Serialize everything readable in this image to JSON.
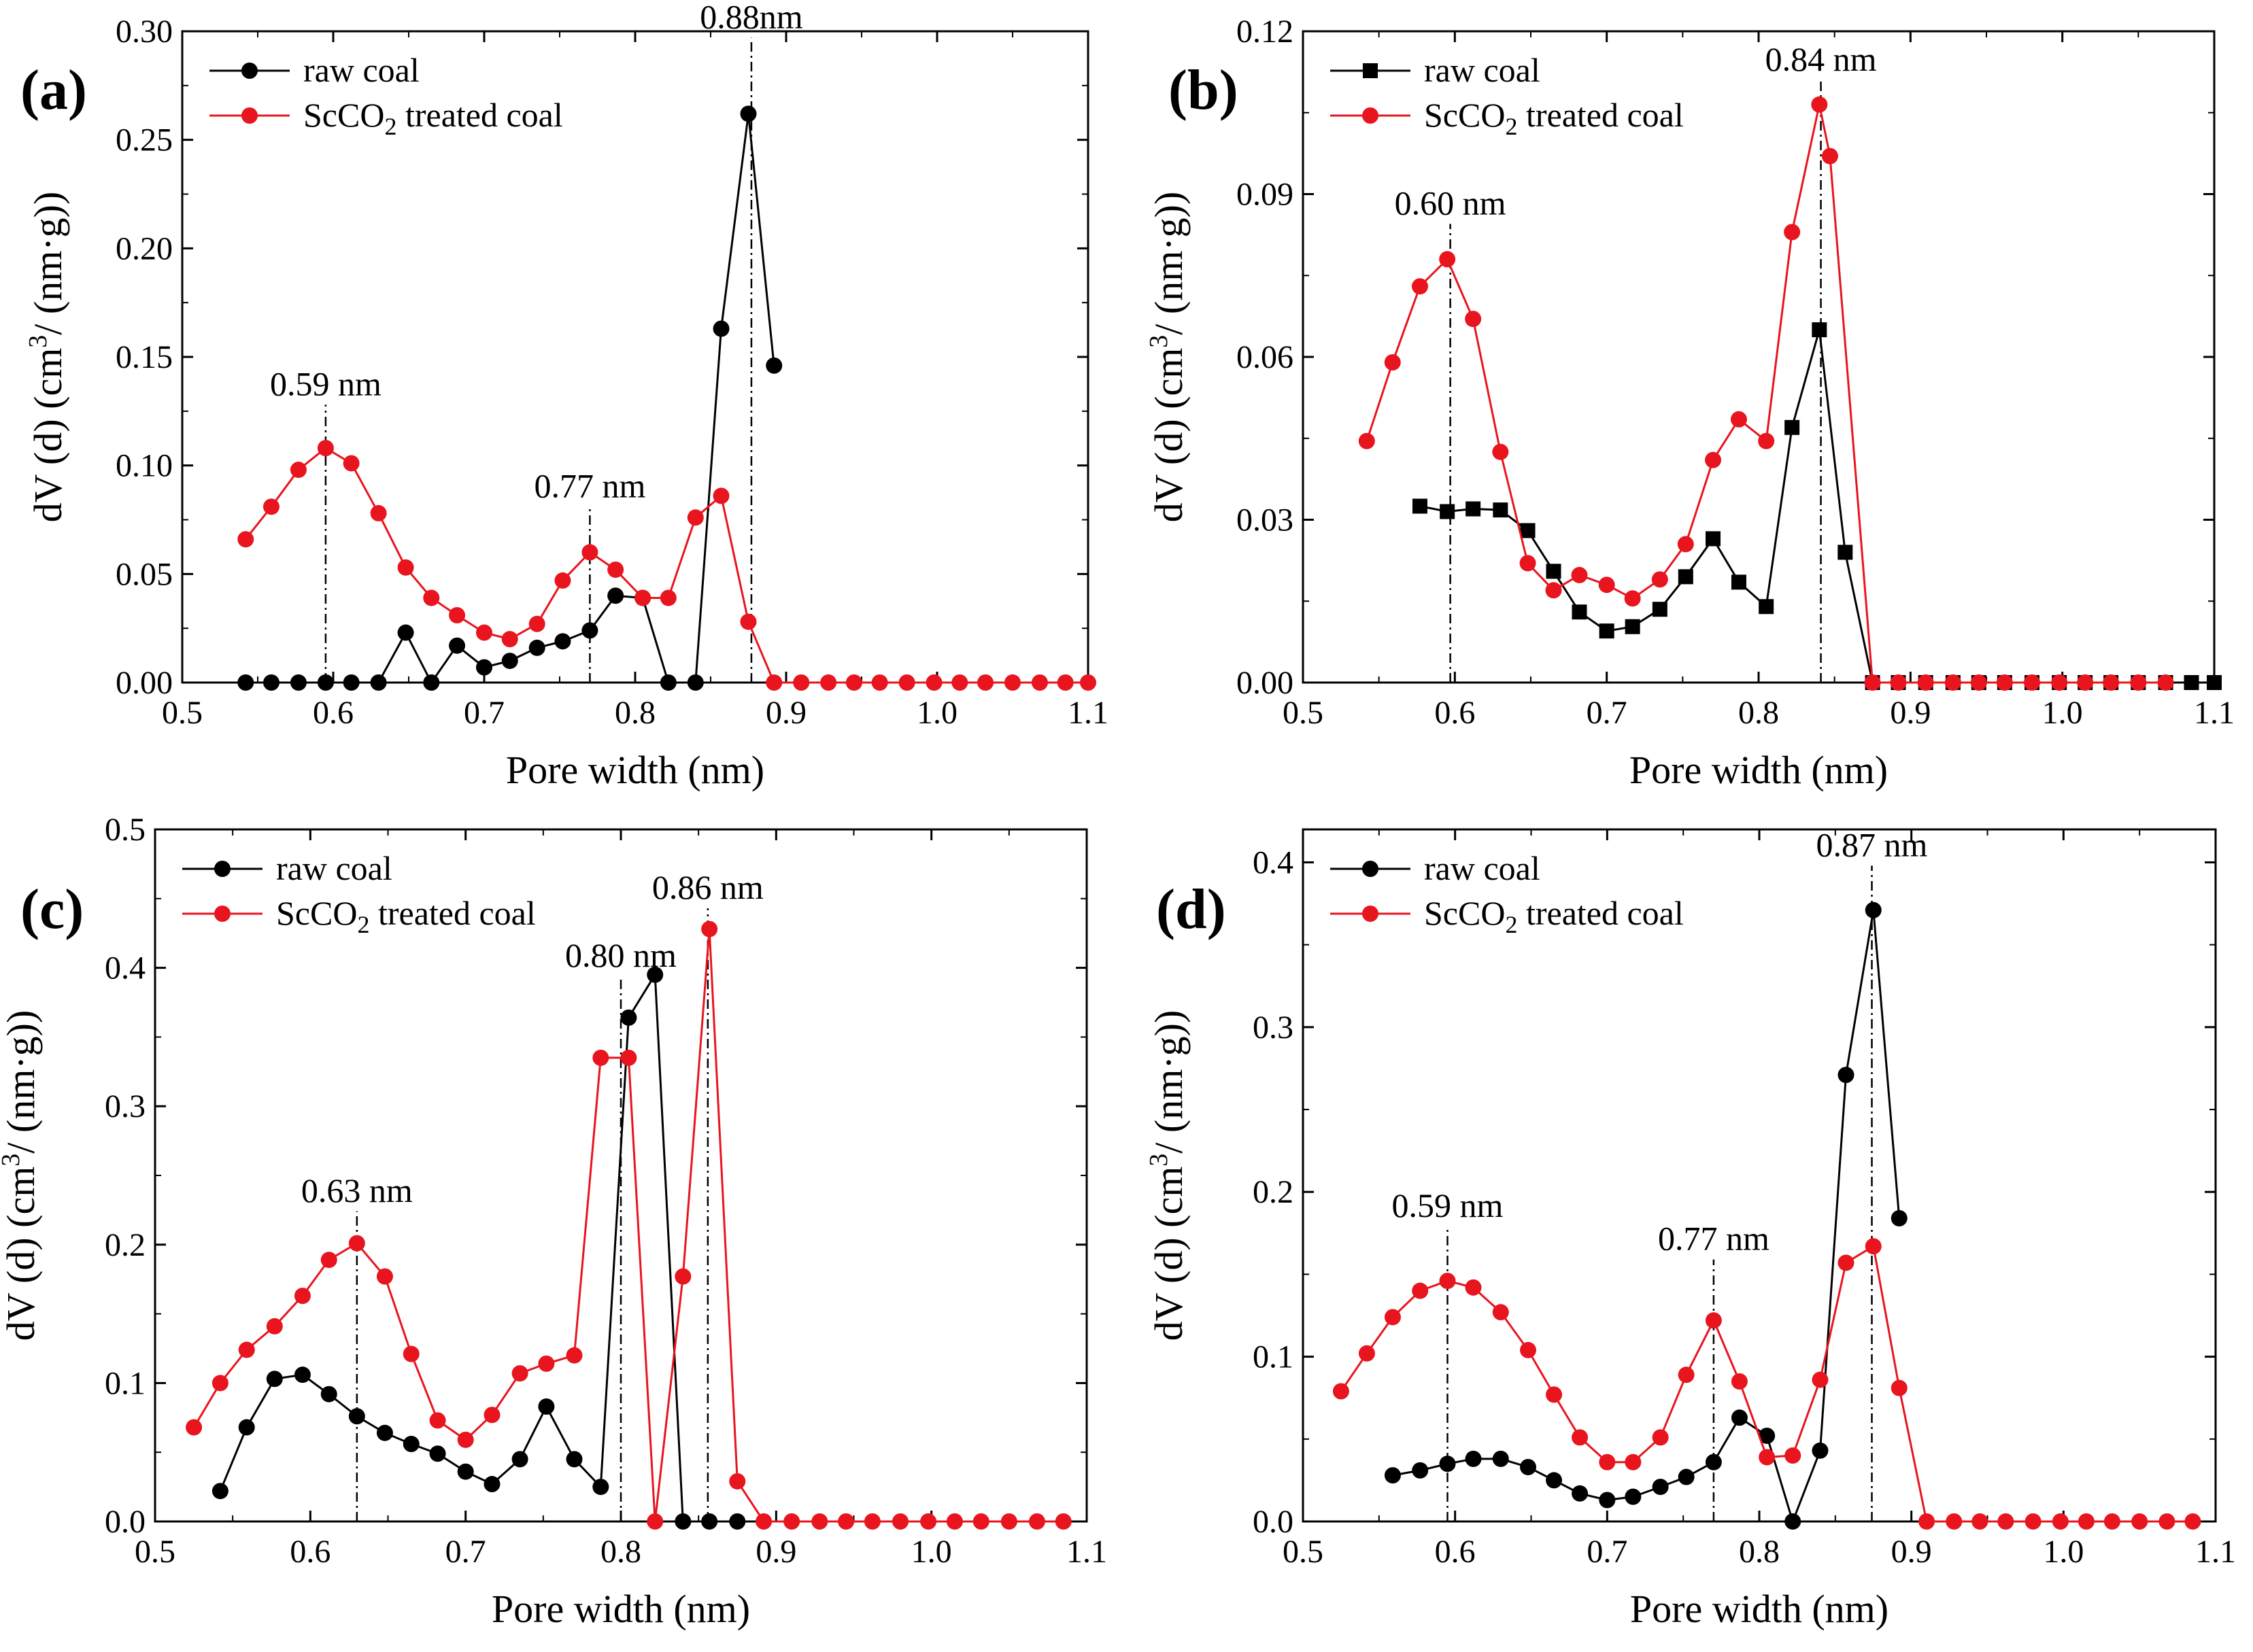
{
  "figure": {
    "panels": [
      "a",
      "b",
      "c",
      "d"
    ]
  },
  "chart_data": [
    {
      "type": "line",
      "panel_label": "(a)",
      "xlabel": "Pore width (nm)",
      "ylabel": {
        "main": "dV (d) (cm",
        "sup": "3",
        "tail": "/ (nm·g))"
      },
      "xlim": [
        0.5,
        1.1
      ],
      "ylim": [
        0,
        0.3
      ],
      "xticks": [
        "0.5",
        "0.6",
        "0.7",
        "0.8",
        "0.9",
        "1.0",
        "1.1"
      ],
      "yticks": [
        "0.00",
        "0.05",
        "0.10",
        "0.15",
        "0.20",
        "0.25",
        "0.30"
      ],
      "legend": {
        "position": "top-left"
      },
      "series": [
        {
          "name": "raw coal",
          "name_sub": "",
          "name_tail": "",
          "color": "#000000",
          "marker": "circle",
          "x": [
            0.542,
            0.559,
            0.577,
            0.595,
            0.612,
            0.63,
            0.648,
            0.665,
            0.682,
            0.7,
            0.717,
            0.735,
            0.752,
            0.77,
            0.787,
            0.805,
            0.822,
            0.84,
            0.857,
            0.875,
            0.892
          ],
          "y": [
            0,
            0,
            0,
            0,
            0,
            0,
            0.023,
            0,
            0.017,
            0.007,
            0.01,
            0.016,
            0.019,
            0.024,
            0.04,
            0.039,
            0,
            0,
            0.163,
            0.262,
            0.146
          ]
        },
        {
          "name": "ScCO",
          "name_sub": "2",
          "name_tail": " treated coal",
          "color": "#e8141e",
          "marker": "circle",
          "x": [
            0.542,
            0.559,
            0.577,
            0.595,
            0.612,
            0.63,
            0.648,
            0.665,
            0.682,
            0.7,
            0.717,
            0.735,
            0.752,
            0.77,
            0.787,
            0.805,
            0.822,
            0.84,
            0.857,
            0.875,
            0.892,
            0.91,
            0.928,
            0.945,
            0.962,
            0.98,
            0.998,
            1.015,
            1.032,
            1.05,
            1.068,
            1.085,
            1.1
          ],
          "y": [
            0.066,
            0.081,
            0.098,
            0.108,
            0.101,
            0.078,
            0.053,
            0.039,
            0.031,
            0.023,
            0.02,
            0.027,
            0.047,
            0.06,
            0.052,
            0.039,
            0.039,
            0.076,
            0.086,
            0.028,
            0,
            0,
            0,
            0,
            0,
            0,
            0,
            0,
            0,
            0,
            0,
            0,
            0
          ]
        }
      ],
      "annotations": [
        {
          "text": "0.59 nm",
          "x": 0.595,
          "y_top": 0.128
        },
        {
          "text": "0.77 nm",
          "x": 0.77,
          "y_top": 0.081
        },
        {
          "text": "0.88nm",
          "x": 0.877,
          "y_top": 0.297
        }
      ]
    },
    {
      "type": "line",
      "panel_label": "(b)",
      "xlabel": "Pore width (nm)",
      "ylabel": {
        "main": "dV (d) (cm",
        "sup": "3",
        "tail": "/ (nm·g))"
      },
      "xlim": [
        0.5,
        1.1
      ],
      "ylim": [
        0,
        0.12
      ],
      "xticks": [
        "0.5",
        "0.6",
        "0.7",
        "0.8",
        "0.9",
        "1.0",
        "1.1"
      ],
      "yticks": [
        "0.00",
        "0.03",
        "0.06",
        "0.09",
        "0.12"
      ],
      "legend": {
        "position": "top-left"
      },
      "series": [
        {
          "name": "raw coal",
          "name_sub": "",
          "name_tail": "",
          "color": "#000000",
          "marker": "square",
          "x": [
            0.577,
            0.595,
            0.612,
            0.63,
            0.648,
            0.665,
            0.682,
            0.7,
            0.717,
            0.735,
            0.752,
            0.77,
            0.787,
            0.805,
            0.822,
            0.84,
            0.857,
            0.875,
            0.892,
            0.91,
            0.928,
            0.945,
            0.962,
            0.98,
            0.998,
            1.015,
            1.032,
            1.05,
            1.068,
            1.085,
            1.1
          ],
          "y": [
            0.0325,
            0.0315,
            0.032,
            0.0318,
            0.028,
            0.0205,
            0.013,
            0.0095,
            0.0103,
            0.0135,
            0.0195,
            0.0265,
            0.0185,
            0.014,
            0.047,
            0.065,
            0.024,
            0,
            0,
            0,
            0,
            0,
            0,
            0,
            0,
            0,
            0,
            0,
            0,
            0,
            0
          ]
        },
        {
          "name": "ScCO",
          "name_sub": "2",
          "name_tail": " treated coal",
          "color": "#e8141e",
          "marker": "circle",
          "x": [
            0.542,
            0.559,
            0.577,
            0.595,
            0.612,
            0.63,
            0.648,
            0.665,
            0.682,
            0.7,
            0.717,
            0.735,
            0.752,
            0.77,
            0.787,
            0.805,
            0.822,
            0.84,
            0.847,
            0.875,
            0.892,
            0.91,
            0.928,
            0.945,
            0.962,
            0.98,
            0.998,
            1.015,
            1.032,
            1.05,
            1.068
          ],
          "y": [
            0.0445,
            0.059,
            0.073,
            0.078,
            0.067,
            0.0425,
            0.022,
            0.017,
            0.0198,
            0.018,
            0.0155,
            0.019,
            0.0255,
            0.041,
            0.0485,
            0.0445,
            0.083,
            0.1065,
            0.097,
            0,
            0,
            0,
            0,
            0,
            0,
            0,
            0,
            0,
            0,
            0,
            0
          ]
        }
      ],
      "annotations": [
        {
          "text": "0.60 nm",
          "x": 0.597,
          "y_top": 0.0845
        },
        {
          "text": "0.84 nm",
          "x": 0.841,
          "y_top": 0.111
        }
      ]
    },
    {
      "type": "line",
      "panel_label": "(c)",
      "xlabel": "Pore width (nm)",
      "ylabel": {
        "main": "dV (d) (cm",
        "sup": "3",
        "tail": "/ (nm·g))"
      },
      "xlim": [
        0.5,
        1.1
      ],
      "ylim": [
        0,
        0.5
      ],
      "xticks": [
        "0.5",
        "0.6",
        "0.7",
        "0.8",
        "0.9",
        "1.0",
        "1.1"
      ],
      "yticks": [
        "0.0",
        "0.1",
        "0.2",
        "0.3",
        "0.4",
        "0.5"
      ],
      "legend": {
        "position": "top-left"
      },
      "series": [
        {
          "name": "raw coal",
          "name_sub": "",
          "name_tail": "",
          "color": "#000000",
          "marker": "circle",
          "x": [
            0.542,
            0.559,
            0.577,
            0.595,
            0.612,
            0.63,
            0.648,
            0.665,
            0.682,
            0.7,
            0.717,
            0.735,
            0.752,
            0.77,
            0.787,
            0.805,
            0.822,
            0.84,
            0.857,
            0.875
          ],
          "y": [
            0.022,
            0.068,
            0.103,
            0.106,
            0.092,
            0.076,
            0.064,
            0.056,
            0.049,
            0.036,
            0.027,
            0.045,
            0.083,
            0.045,
            0.025,
            0.364,
            0.395,
            0,
            0,
            0
          ]
        },
        {
          "name": "ScCO",
          "name_sub": "2",
          "name_tail": " treated coal",
          "color": "#e8141e",
          "marker": "circle",
          "x": [
            0.525,
            0.542,
            0.559,
            0.577,
            0.595,
            0.612,
            0.63,
            0.648,
            0.665,
            0.682,
            0.7,
            0.717,
            0.735,
            0.752,
            0.77,
            0.787,
            0.805,
            0.822,
            0.84,
            0.857,
            0.875,
            0.892,
            0.91,
            0.928,
            0.945,
            0.962,
            0.98,
            0.998,
            1.015,
            1.032,
            1.05,
            1.068,
            1.085
          ],
          "y": [
            0.068,
            0.1,
            0.124,
            0.141,
            0.163,
            0.189,
            0.201,
            0.177,
            0.121,
            0.073,
            0.059,
            0.077,
            0.107,
            0.114,
            0.12,
            0.335,
            0.335,
            0,
            0.177,
            0.428,
            0.029,
            0,
            0,
            0,
            0,
            0,
            0,
            0,
            0,
            0,
            0,
            0,
            0
          ]
        }
      ],
      "annotations": [
        {
          "text": "0.63 nm",
          "x": 0.63,
          "y_top": 0.224
        },
        {
          "text": "0.80 nm",
          "x": 0.8,
          "y_top": 0.394
        },
        {
          "text": "0.86 nm",
          "x": 0.856,
          "y_top": 0.443
        }
      ]
    },
    {
      "type": "line",
      "panel_label": "(d)",
      "xlabel": "Pore width (nm)",
      "ylabel": {
        "main": "dV (d) (cm",
        "sup": "3",
        "tail": "/ (nm·g))"
      },
      "xlim": [
        0.5,
        1.1
      ],
      "ylim": [
        0,
        0.42
      ],
      "xticks": [
        "0.5",
        "0.6",
        "0.7",
        "0.8",
        "0.9",
        "1.0",
        "1.1"
      ],
      "yticks": [
        "0.0",
        "0.1",
        "0.2",
        "0.3",
        "0.4"
      ],
      "legend": {
        "position": "top-left"
      },
      "series": [
        {
          "name": "raw coal",
          "name_sub": "",
          "name_tail": "",
          "color": "#000000",
          "marker": "circle",
          "x": [
            0.559,
            0.577,
            0.595,
            0.612,
            0.63,
            0.648,
            0.665,
            0.682,
            0.7,
            0.717,
            0.735,
            0.752,
            0.77,
            0.787,
            0.805,
            0.822,
            0.84,
            0.857,
            0.875,
            0.892
          ],
          "y": [
            0.028,
            0.031,
            0.035,
            0.038,
            0.038,
            0.033,
            0.025,
            0.017,
            0.013,
            0.015,
            0.021,
            0.027,
            0.036,
            0.063,
            0.052,
            0,
            0.043,
            0.271,
            0.371,
            0.184
          ]
        },
        {
          "name": "ScCO",
          "name_sub": "2",
          "name_tail": " treated coal",
          "color": "#e8141e",
          "marker": "circle",
          "x": [
            0.525,
            0.542,
            0.559,
            0.577,
            0.595,
            0.612,
            0.63,
            0.648,
            0.665,
            0.682,
            0.7,
            0.717,
            0.735,
            0.752,
            0.77,
            0.787,
            0.805,
            0.822,
            0.84,
            0.857,
            0.875,
            0.892,
            0.91,
            0.928,
            0.945,
            0.962,
            0.98,
            0.998,
            1.015,
            1.032,
            1.05,
            1.068,
            1.085
          ],
          "y": [
            0.079,
            0.102,
            0.124,
            0.14,
            0.146,
            0.142,
            0.127,
            0.104,
            0.077,
            0.051,
            0.036,
            0.036,
            0.051,
            0.089,
            0.122,
            0.085,
            0.039,
            0.04,
            0.086,
            0.157,
            0.167,
            0.081,
            0,
            0,
            0,
            0,
            0,
            0,
            0,
            0,
            0,
            0,
            0
          ]
        }
      ],
      "annotations": [
        {
          "text": "0.59 nm",
          "x": 0.595,
          "y_top": 0.179
        },
        {
          "text": "0.77 nm",
          "x": 0.77,
          "y_top": 0.159
        },
        {
          "text": "0.87 nm",
          "x": 0.874,
          "y_top": 0.398
        }
      ]
    }
  ]
}
